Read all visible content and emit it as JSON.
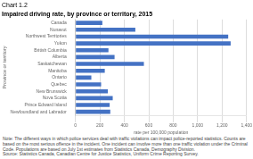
{
  "chart_data": {
    "type": "bar",
    "orientation": "horizontal",
    "title": "Chart 1.2",
    "subtitle": "Impaired driving rate, by province or territory, 2015",
    "y_label": "Province or territory",
    "x_label": "rate per 100,000 population",
    "categories": [
      "Canada",
      "Nunavut",
      "Northwest Territories",
      "Yukon",
      "British Columbia",
      "Alberta",
      "Saskatchewan",
      "Manitoba",
      "Ontario",
      "Quebec",
      "New Brunswick",
      "Nova Scotia",
      "Prince Edward Island",
      "Newfoundland and Labrador"
    ],
    "values": [
      220,
      490,
      1250,
      1270,
      270,
      320,
      560,
      240,
      130,
      210,
      265,
      305,
      280,
      285
    ],
    "color": "#4472C4",
    "xlim": [
      0,
      1400
    ],
    "xticks": [
      0,
      200,
      400,
      600,
      800,
      {
        "value": 1000,
        "label": "1,000"
      },
      {
        "value": 1200,
        "label": "1,200"
      },
      {
        "value": 1400,
        "label": "1,400"
      }
    ],
    "grid": true,
    "note": "Note: The different ways in which police services deal with traffic violations can impact police-reported statistics. Counts are based on the most serious offence in the incident. One incident can involve more than one traffic violation under the Criminal Code. Populations are based on July 1st estimates from Statistics Canada, Demography Division.\nSource: Statistics Canada, Canadian Centre for Justice Statistics, Uniform Crime Reporting Survey."
  }
}
